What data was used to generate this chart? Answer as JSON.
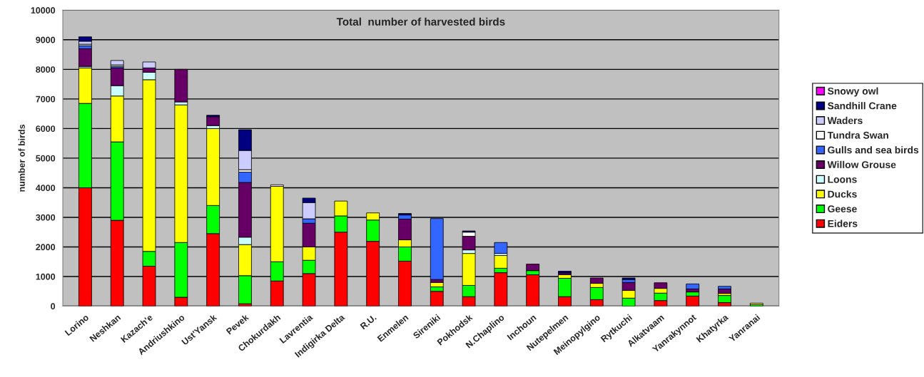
{
  "chart_data": {
    "type": "bar",
    "stacked": true,
    "title": "Total  number of harvested birds",
    "ylabel": "number of birds",
    "categories": [
      "Lorino",
      "Neshkan",
      "Kazach'e",
      "Andriushkino",
      "Ust'Yansk",
      "Pevek",
      "Chokurdakh",
      "Lavrentia",
      "Indigirka Delta",
      "R.U.",
      "Enmelen",
      "Sireniki",
      "Pokhodsk",
      "N.Chaplino",
      "Inchoun",
      "Nutepelmen",
      "Meinopylgino",
      "Rytkuchi",
      "Alkatvaam",
      "Yanrakynnot",
      "Khatyrka",
      "Yanranai"
    ],
    "series": [
      {
        "name": "Eiders",
        "color": "#ff0000",
        "values": [
          4000,
          2900,
          1350,
          300,
          2450,
          80,
          850,
          1100,
          2500,
          2190,
          1520,
          500,
          320,
          1130,
          1060,
          320,
          220,
          0,
          190,
          340,
          120,
          0
        ]
      },
      {
        "name": "Geese",
        "color": "#00ff00",
        "values": [
          2850,
          2650,
          500,
          1850,
          950,
          950,
          650,
          450,
          550,
          720,
          480,
          150,
          380,
          150,
          140,
          620,
          410,
          270,
          250,
          140,
          240,
          50
        ]
      },
      {
        "name": "Ducks",
        "color": "#ffff00",
        "values": [
          1200,
          1550,
          5800,
          4650,
          2600,
          1050,
          2550,
          450,
          500,
          240,
          240,
          150,
          1080,
          430,
          0,
          120,
          140,
          260,
          160,
          0,
          70,
          50
        ]
      },
      {
        "name": "Loons",
        "color": "#ccffff",
        "values": [
          50,
          350,
          250,
          100,
          100,
          250,
          0,
          0,
          0,
          0,
          0,
          0,
          120,
          70,
          0,
          0,
          0,
          0,
          0,
          0,
          0,
          0
        ]
      },
      {
        "name": "Willow Grouse",
        "color": "#660066",
        "values": [
          600,
          600,
          150,
          1100,
          300,
          1850,
          0,
          800,
          0,
          0,
          700,
          100,
          460,
          0,
          220,
          60,
          180,
          270,
          190,
          100,
          150,
          0
        ]
      },
      {
        "name": "Gulls and sea birds",
        "color": "#3366ff",
        "values": [
          100,
          50,
          0,
          0,
          0,
          350,
          0,
          150,
          0,
          0,
          140,
          2060,
          0,
          370,
          0,
          0,
          0,
          100,
          0,
          170,
          90,
          0
        ]
      },
      {
        "name": "Tundra Swan",
        "color": "#ffffff",
        "values": [
          50,
          50,
          0,
          0,
          0,
          80,
          50,
          0,
          0,
          0,
          0,
          0,
          140,
          0,
          0,
          0,
          0,
          0,
          0,
          0,
          0,
          0
        ]
      },
      {
        "name": "Waders",
        "color": "#ccccff",
        "values": [
          100,
          150,
          200,
          0,
          0,
          650,
          0,
          550,
          0,
          0,
          0,
          0,
          0,
          0,
          0,
          0,
          0,
          0,
          0,
          0,
          0,
          0
        ]
      },
      {
        "name": "Sandhill Crane",
        "color": "#000080",
        "values": [
          150,
          0,
          0,
          0,
          50,
          700,
          0,
          150,
          0,
          0,
          50,
          0,
          40,
          0,
          0,
          60,
          0,
          50,
          0,
          0,
          0,
          0
        ]
      },
      {
        "name": "Snowy owl",
        "color": "#ff00ff",
        "values": [
          0,
          0,
          0,
          0,
          0,
          0,
          0,
          0,
          0,
          0,
          0,
          0,
          0,
          0,
          0,
          0,
          0,
          0,
          0,
          0,
          0,
          0
        ]
      }
    ],
    "ylim": [
      0,
      10000
    ],
    "yticks": [
      0,
      1000,
      2000,
      3000,
      4000,
      5000,
      6000,
      7000,
      8000,
      9000,
      10000
    ],
    "grid": "y",
    "legend": "right"
  }
}
